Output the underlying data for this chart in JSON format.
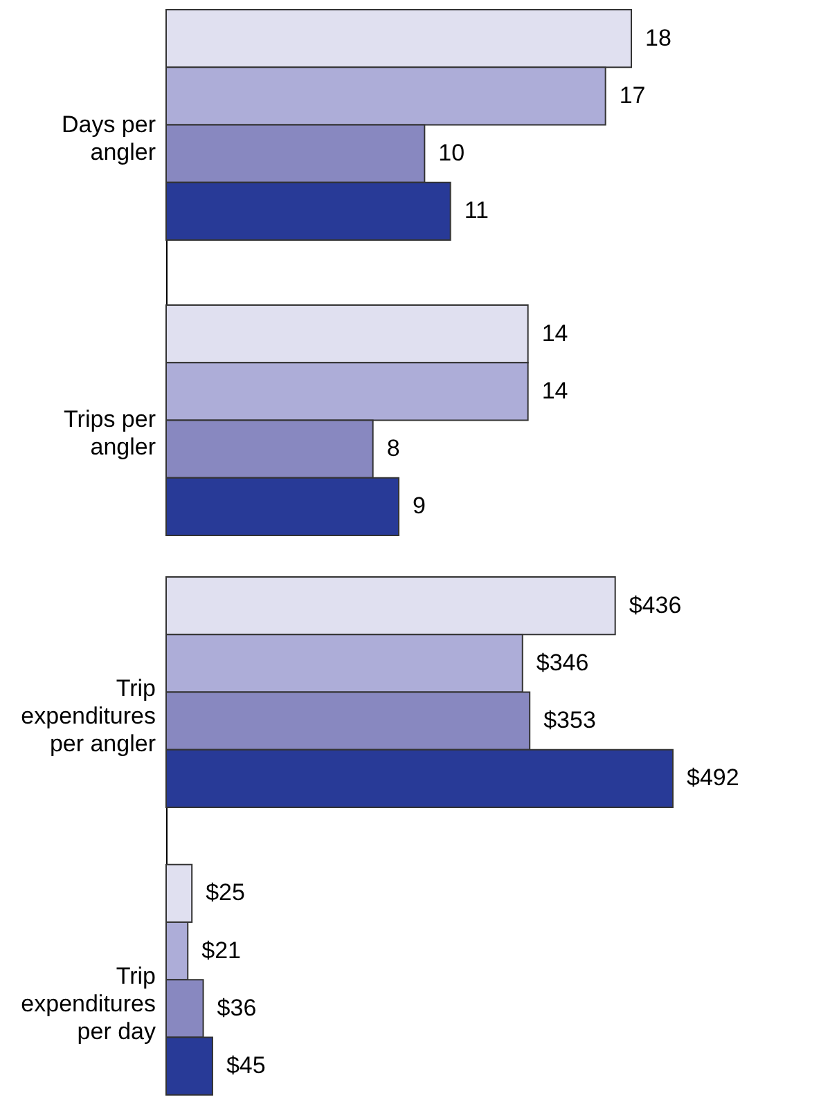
{
  "chart_data": [
    {
      "type": "bar",
      "orientation": "horizontal",
      "categories": [
        "Days per angler",
        "Trips per angler"
      ],
      "data_labels": true,
      "series": [
        {
          "color": "#e0e0f0",
          "values": [
            18,
            14
          ]
        },
        {
          "color": "#adadd8",
          "values": [
            17,
            14
          ]
        },
        {
          "color": "#8888c0",
          "values": [
            10,
            8
          ]
        },
        {
          "color": "#283a97",
          "values": [
            11,
            9
          ]
        }
      ]
    },
    {
      "type": "bar",
      "orientation": "horizontal",
      "categories": [
        "Trip expenditures per angler",
        "Trip expenditures per day"
      ],
      "series": [
        {
          "color": "#e0e0f0",
          "values": [
            436,
            25
          ],
          "value_labels": [
            "$436",
            "$25"
          ]
        },
        {
          "color": "#adadd8",
          "values": [
            346,
            21
          ],
          "value_labels": [
            "$346",
            "$21"
          ]
        },
        {
          "color": "#8888c0",
          "values": [
            353,
            36
          ],
          "value_labels": [
            "$353",
            "$36"
          ]
        },
        {
          "color": "#283a97",
          "values": [
            492,
            45
          ],
          "value_labels": [
            "$492",
            "$45"
          ]
        }
      ]
    }
  ]
}
